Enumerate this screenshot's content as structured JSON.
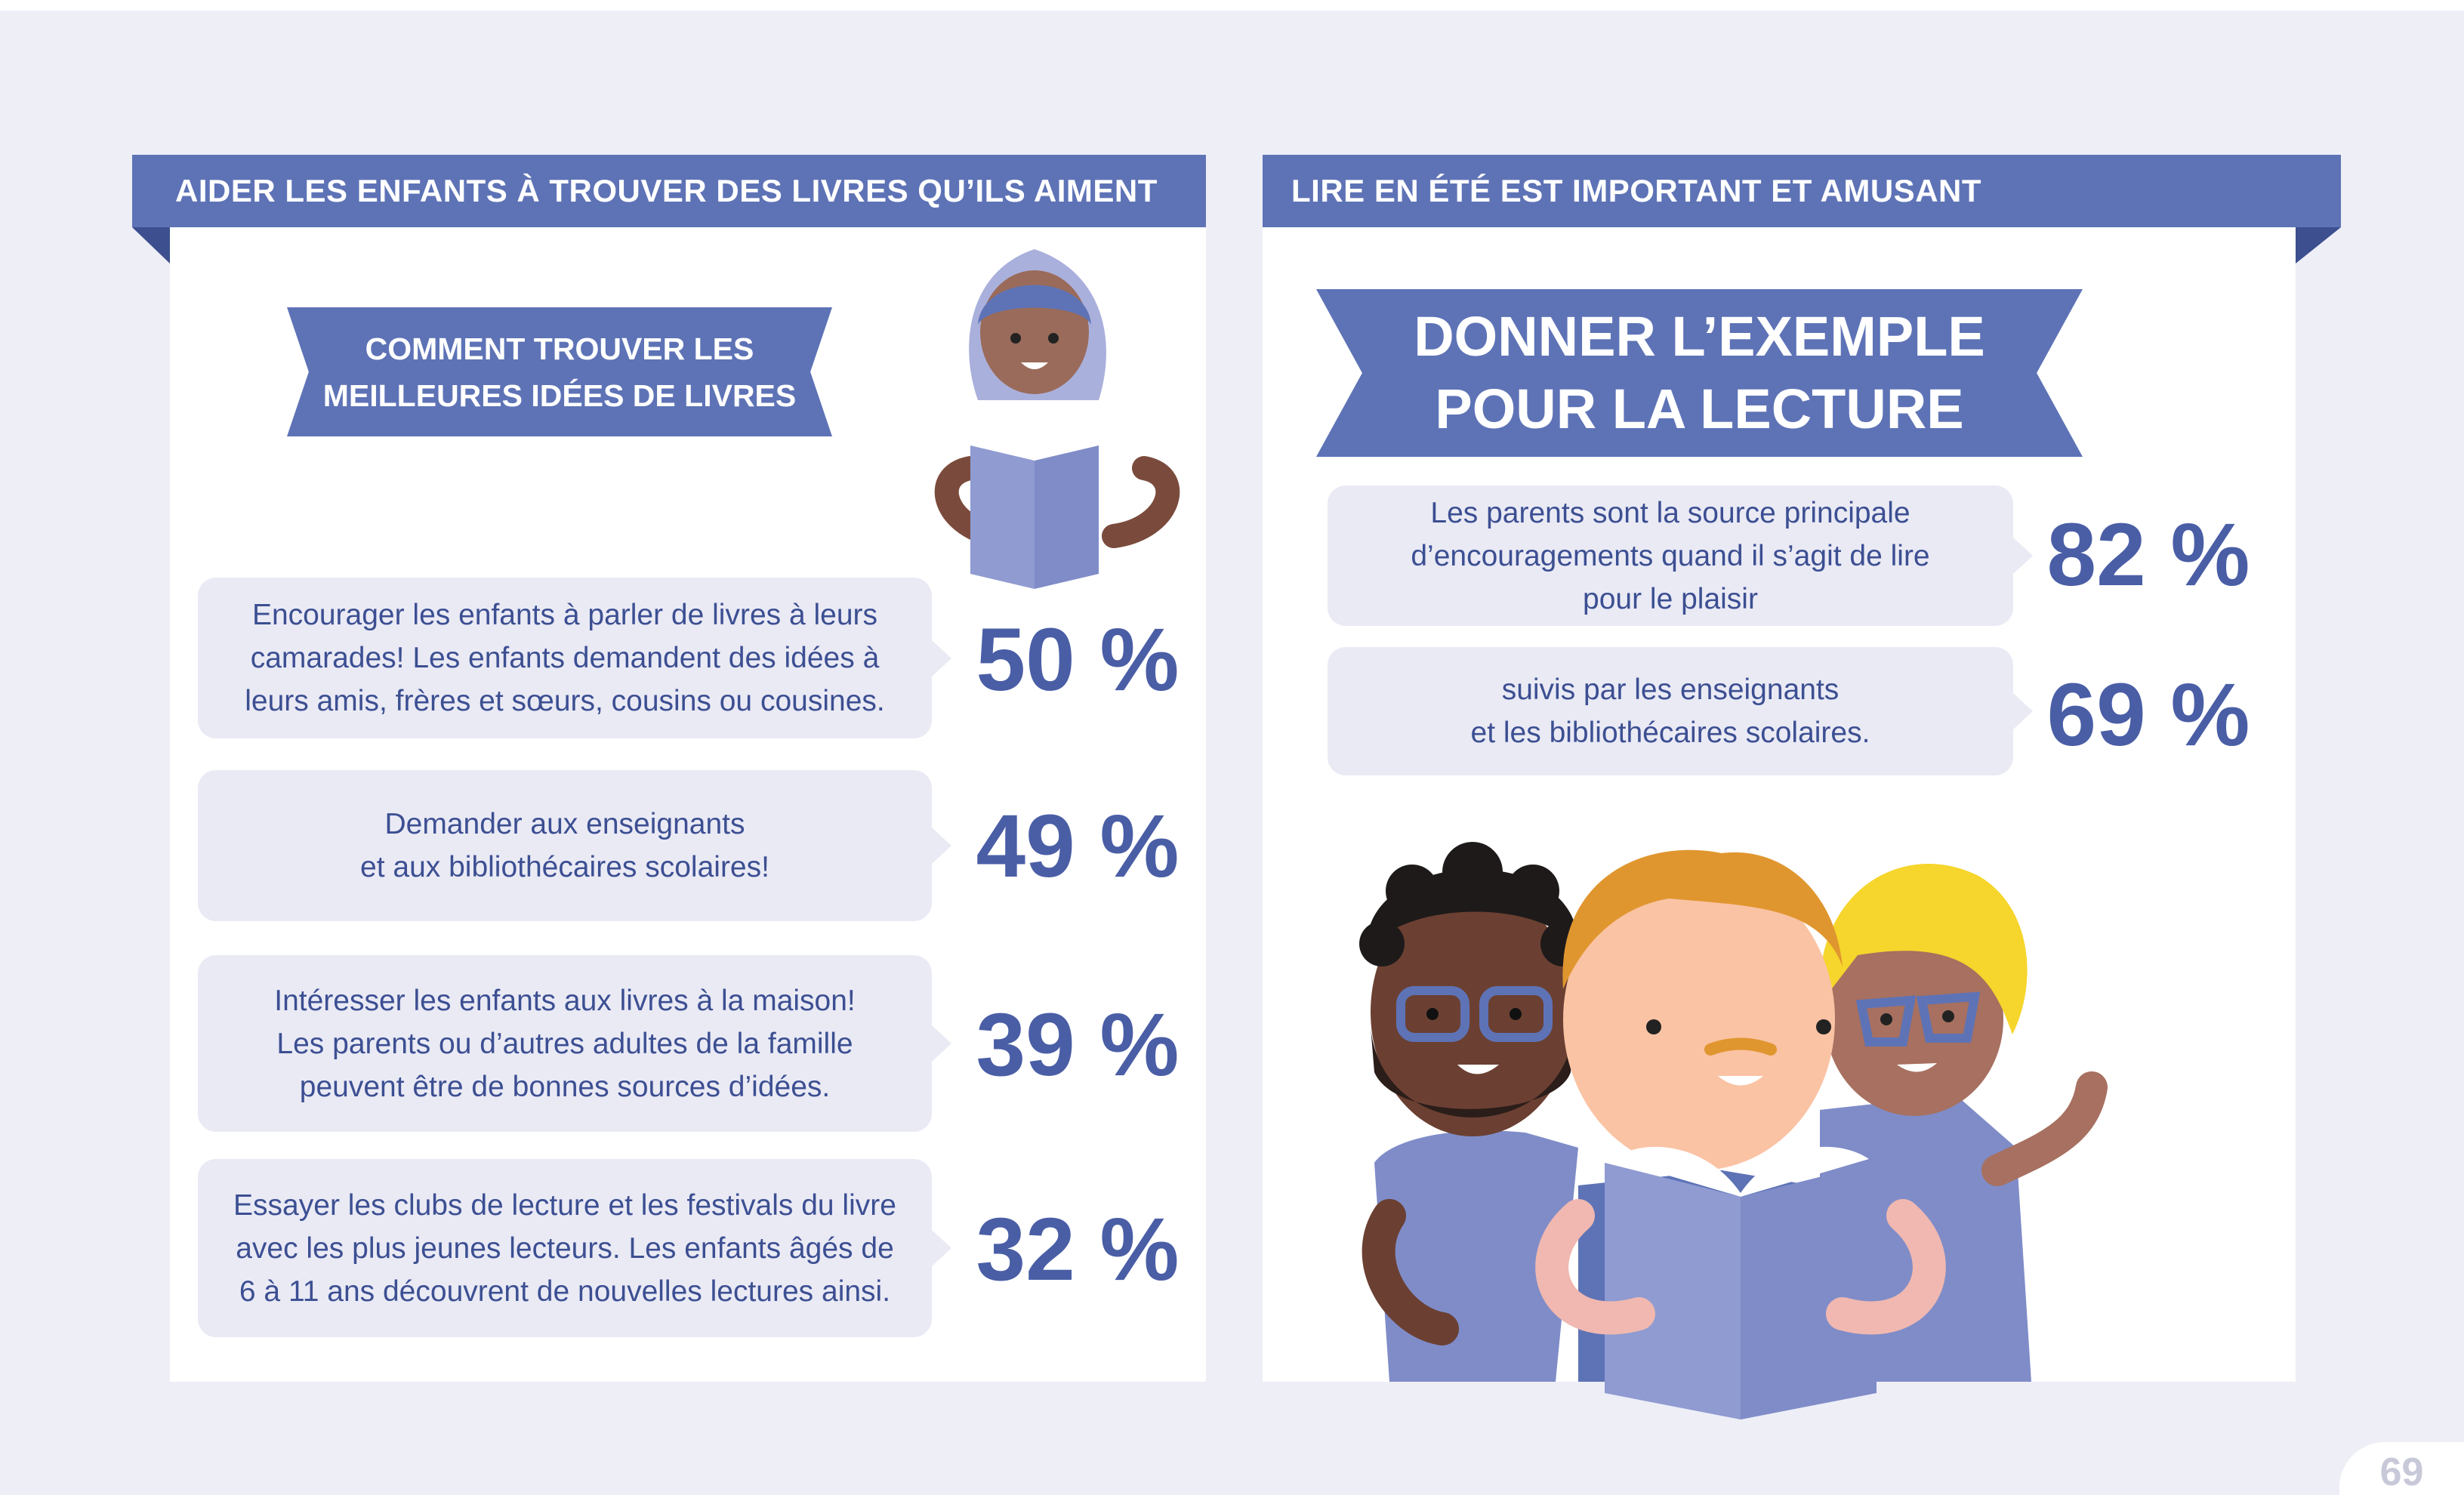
{
  "left": {
    "banner": "AIDER LES ENFANTS À TROUVER DES LIVRES QU’ILS AIMENT",
    "ribbon_lines": [
      "COMMENT TROUVER LES",
      "MEILLEURES IDÉES DE LIVRES"
    ],
    "items": [
      {
        "lines": [
          "Encourager les enfants à parler de livres à leurs",
          "camarades! Les enfants demandent des idées à",
          "leurs amis, frères et sœurs, cousins ou cousines."
        ],
        "percent": "50 %"
      },
      {
        "lines": [
          "Demander aux enseignants",
          "et aux bibliothécaires scolaires!"
        ],
        "percent": "49 %"
      },
      {
        "lines": [
          "Intéresser les enfants aux livres à la maison!",
          "Les parents ou d’autres adultes de la famille",
          "peuvent être de bonnes sources d’idées."
        ],
        "percent": "39 %"
      },
      {
        "lines": [
          "Essayer les clubs de lecture et les festivals du livre",
          "avec les plus jeunes lecteurs. Les enfants âgés de",
          "6 à 11 ans découvrent de nouvelles lectures ainsi."
        ],
        "percent": "32 %"
      }
    ]
  },
  "right": {
    "banner": "LIRE EN ÉTÉ EST IMPORTANT ET AMUSANT",
    "ribbon_lines": [
      "DONNER L’EXEMPLE",
      "POUR LA LECTURE"
    ],
    "items": [
      {
        "lines": [
          "Les parents sont la source principale",
          "d’encouragements quand il s’agit de lire",
          "pour le plaisir"
        ],
        "percent": "82 %"
      },
      {
        "lines": [
          "suivis par les enseignants",
          "et les bibliothécaires scolaires."
        ],
        "percent": "69 %"
      }
    ]
  },
  "page_number": "69",
  "colors": {
    "accent": "#5e73b6",
    "bubble": "#eaeaf5",
    "text": "#3c4f92",
    "background": "#eeeef7"
  }
}
